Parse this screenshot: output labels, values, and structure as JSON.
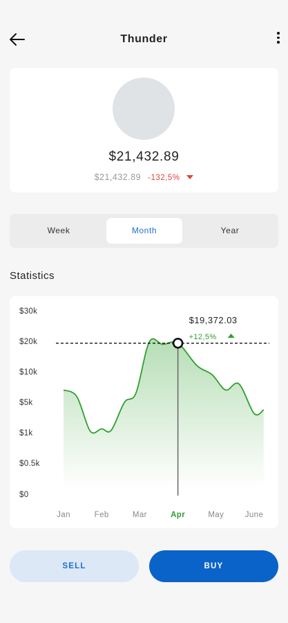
{
  "header": {
    "title": "Thunder",
    "back_icon": "arrow-left-icon",
    "more_icon": "more-vertical-icon"
  },
  "summary": {
    "price": "$21,432.89",
    "sub_price": "$21,432.89",
    "change": "-132,5%",
    "change_direction": "down",
    "change_color": "#e0443b"
  },
  "tabs": {
    "items": [
      "Week",
      "Month",
      "Year"
    ],
    "selected": "Month"
  },
  "statistics": {
    "title": "Statistics"
  },
  "chart_data": {
    "type": "area",
    "y_tick_labels": [
      "$30k",
      "$20k",
      "$10k",
      "$5k",
      "$1k",
      "$0.5k",
      "$0"
    ],
    "x_tick_labels": [
      "Jan",
      "Feb",
      "Mar",
      "Apr",
      "May",
      "June"
    ],
    "active_category": "Apr",
    "series": [
      {
        "color": "#2ea02e",
        "points": [
          {
            "x": 0.0,
            "y": 7.0
          },
          {
            "x": 0.35,
            "y": 5.9
          },
          {
            "x": 0.7,
            "y": 1.2
          },
          {
            "x": 1.0,
            "y": 1.5
          },
          {
            "x": 1.25,
            "y": 1.3
          },
          {
            "x": 1.6,
            "y": 5.0
          },
          {
            "x": 1.9,
            "y": 6.5
          },
          {
            "x": 2.25,
            "y": 19.8
          },
          {
            "x": 2.6,
            "y": 19.0
          },
          {
            "x": 3.0,
            "y": 19.372
          },
          {
            "x": 3.5,
            "y": 12.0
          },
          {
            "x": 3.9,
            "y": 9.5
          },
          {
            "x": 4.25,
            "y": 7.0
          },
          {
            "x": 4.6,
            "y": 8.0
          },
          {
            "x": 5.0,
            "y": 3.5
          },
          {
            "x": 5.25,
            "y": 4.0
          }
        ]
      }
    ],
    "highlight": {
      "x": "Apr",
      "value": "$19,372.03",
      "change": "+12,5%",
      "change_direction": "up"
    },
    "grid": false
  },
  "actions": {
    "sell_label": "SELL",
    "buy_label": "BUY"
  },
  "colors": {
    "accent": "#1c6fd0",
    "buy": "#0a63c9",
    "positive": "#2ea02e",
    "negative": "#e0443b"
  }
}
